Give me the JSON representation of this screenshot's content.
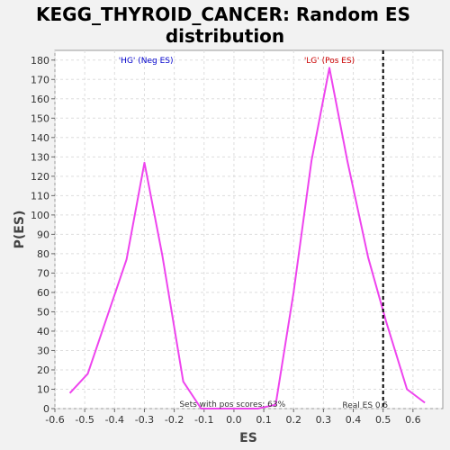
{
  "chart_data": {
    "type": "line",
    "title_line1": "KEGG_THYROID_CANCER: Random ES",
    "title_line2": "distribution",
    "xlabel": "ES",
    "ylabel": "P(ES)",
    "xlim": [
      -0.6,
      0.7
    ],
    "ylim": [
      0,
      185
    ],
    "xticks": [
      -0.6,
      -0.5,
      -0.4,
      -0.3,
      -0.2,
      -0.1,
      0.0,
      0.1,
      0.2,
      0.3,
      0.4,
      0.5,
      0.6
    ],
    "xtick_labels": [
      "-0.6",
      "-0.5",
      "-0.4",
      "-0.3",
      "-0.2",
      "-0.1",
      "0.0",
      "0.1",
      "0.2",
      "0.3",
      "0.4",
      "0.5",
      "0.6"
    ],
    "yticks": [
      0,
      10,
      20,
      30,
      40,
      50,
      60,
      70,
      80,
      90,
      100,
      110,
      120,
      130,
      140,
      150,
      160,
      170,
      180
    ],
    "grid": true,
    "line_color": "#ee44ee",
    "series": [
      {
        "x": [
          -0.55,
          -0.49,
          -0.36,
          -0.3,
          -0.24,
          -0.17,
          -0.11,
          -0.04,
          0.02,
          0.08,
          0.14,
          0.2,
          0.26,
          0.32,
          0.38,
          0.45,
          0.51,
          0.58,
          0.64
        ],
        "y": [
          8,
          18,
          77,
          127,
          79,
          14,
          0,
          0,
          0,
          0,
          2,
          60,
          128,
          176,
          128,
          78,
          45,
          10,
          3
        ]
      }
    ],
    "real_es": 0.5,
    "real_es_label": "Real ES 0.5",
    "neg_label": "'HG' (Neg ES)",
    "pos_label": "'LG' (Pos ES)",
    "neg_color": "#0000cc",
    "pos_color": "#cc0000",
    "pos_score_text": "Sets with pos scores: 63%"
  }
}
